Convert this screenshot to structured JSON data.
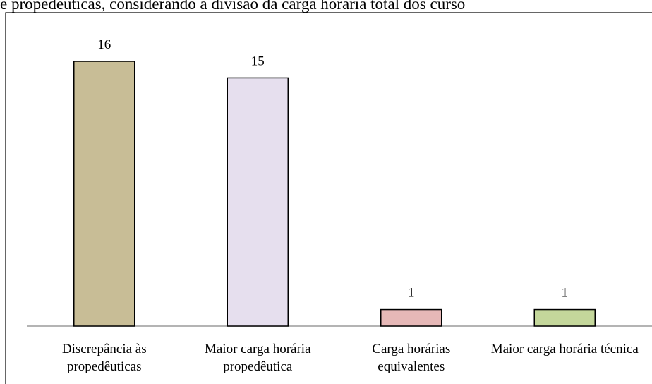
{
  "chart_data": {
    "type": "bar",
    "title": "e propedêuticas, considerando a divisão da carga horária total dos curso",
    "categories": [
      "Discrepância às propedêuticas",
      "Maior carga horária propedêutica",
      "Carga horárias equivalentes",
      "Maior carga horária técnica"
    ],
    "values": [
      16,
      15,
      1,
      1
    ],
    "colors": [
      "#c8bd96",
      "#e6dfee",
      "#e6b8b7",
      "#c4d79b"
    ]
  }
}
